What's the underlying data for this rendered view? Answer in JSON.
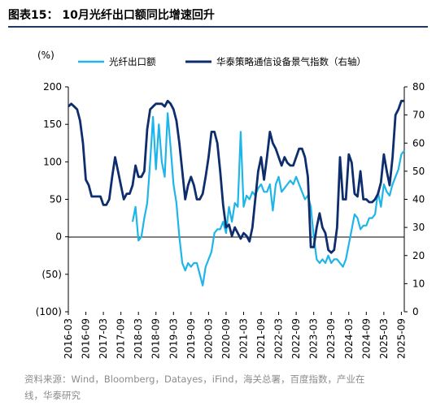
{
  "header": {
    "title": "图表15：  10月光纤出口额同比增速回升"
  },
  "footer": {
    "source_line1": "资料来源：Wind，Bloomberg，Datayes，iFind，海关总署，百度指数，产业在",
    "source_line2": "线，华泰研究"
  },
  "chart_data": {
    "type": "line",
    "title": "10月光纤出口额同比增速回升",
    "left_axis": {
      "label": "(%)",
      "ylim": [
        -100,
        200
      ],
      "ticks": [
        200,
        150,
        100,
        50,
        0,
        -50,
        -100
      ],
      "tick_labels": [
        "200",
        "150",
        "100",
        "50",
        "0",
        "(50)",
        "(100)"
      ]
    },
    "right_axis": {
      "label": "",
      "ylim": [
        0,
        80
      ],
      "ticks": [
        80,
        70,
        60,
        50,
        40,
        30,
        20,
        10,
        0
      ],
      "tick_labels": [
        "80",
        "70",
        "60",
        "50",
        "40",
        "30",
        "20",
        "10",
        "0"
      ]
    },
    "x_axis": {
      "start": "2016-03",
      "end": "2025-10",
      "tick_labels": [
        "2016-03",
        "2016-09",
        "2017-03",
        "2017-09",
        "2018-03",
        "2018-09",
        "2019-03",
        "2019-09",
        "2020-03",
        "2020-09",
        "2021-03",
        "2021-09",
        "2022-03",
        "2022-09",
        "2023-03",
        "2023-09",
        "2024-03",
        "2024-09",
        "2025-03",
        "2025-09"
      ]
    },
    "legend_position": "top",
    "series": [
      {
        "name": "光纤出口额",
        "axis": "left",
        "color": "#1fb5e8",
        "points": [
          [
            "2018-01",
            20
          ],
          [
            "2018-02",
            40
          ],
          [
            "2018-03",
            -5
          ],
          [
            "2018-04",
            0
          ],
          [
            "2018-05",
            25
          ],
          [
            "2018-06",
            45
          ],
          [
            "2018-07",
            100
          ],
          [
            "2018-08",
            160
          ],
          [
            "2018-09",
            90
          ],
          [
            "2018-10",
            150
          ],
          [
            "2018-11",
            100
          ],
          [
            "2018-12",
            80
          ],
          [
            "2019-01",
            165
          ],
          [
            "2019-02",
            120
          ],
          [
            "2019-03",
            70
          ],
          [
            "2019-04",
            45
          ],
          [
            "2019-05",
            0
          ],
          [
            "2019-06",
            -35
          ],
          [
            "2019-07",
            -45
          ],
          [
            "2019-08",
            -35
          ],
          [
            "2019-09",
            -40
          ],
          [
            "2019-10",
            -35
          ],
          [
            "2019-11",
            -35
          ],
          [
            "2019-12",
            -50
          ],
          [
            "2020-01",
            -65
          ],
          [
            "2020-02",
            -40
          ],
          [
            "2020-03",
            -30
          ],
          [
            "2020-04",
            -20
          ],
          [
            "2020-05",
            5
          ],
          [
            "2020-06",
            10
          ],
          [
            "2020-07",
            10
          ],
          [
            "2020-08",
            20
          ],
          [
            "2020-09",
            5
          ],
          [
            "2020-10",
            40
          ],
          [
            "2020-11",
            20
          ],
          [
            "2020-12",
            45
          ],
          [
            "2021-01",
            40
          ],
          [
            "2021-02",
            140
          ],
          [
            "2021-03",
            40
          ],
          [
            "2021-04",
            55
          ],
          [
            "2021-05",
            50
          ],
          [
            "2021-06",
            60
          ],
          [
            "2021-07",
            55
          ],
          [
            "2021-08",
            65
          ],
          [
            "2021-09",
            70
          ],
          [
            "2021-10",
            60
          ],
          [
            "2021-11",
            60
          ],
          [
            "2021-12",
            70
          ],
          [
            "2022-01",
            35
          ],
          [
            "2022-02",
            70
          ],
          [
            "2022-03",
            80
          ],
          [
            "2022-04",
            60
          ],
          [
            "2022-05",
            65
          ],
          [
            "2022-06",
            70
          ],
          [
            "2022-07",
            75
          ],
          [
            "2022-08",
            70
          ],
          [
            "2022-09",
            80
          ],
          [
            "2022-10",
            70
          ],
          [
            "2022-11",
            60
          ],
          [
            "2022-12",
            50
          ],
          [
            "2023-01",
            55
          ],
          [
            "2023-02",
            40
          ],
          [
            "2023-03",
            0
          ],
          [
            "2023-04",
            -30
          ],
          [
            "2023-05",
            -35
          ],
          [
            "2023-06",
            -30
          ],
          [
            "2023-07",
            -35
          ],
          [
            "2023-08",
            -25
          ],
          [
            "2023-09",
            -35
          ],
          [
            "2023-10",
            -30
          ],
          [
            "2023-11",
            -30
          ],
          [
            "2023-12",
            -35
          ],
          [
            "2024-01",
            -40
          ],
          [
            "2024-02",
            -30
          ],
          [
            "2024-03",
            -10
          ],
          [
            "2024-04",
            10
          ],
          [
            "2024-05",
            30
          ],
          [
            "2024-06",
            25
          ],
          [
            "2024-07",
            10
          ],
          [
            "2024-08",
            15
          ],
          [
            "2024-09",
            15
          ],
          [
            "2024-10",
            25
          ],
          [
            "2024-11",
            25
          ],
          [
            "2024-12",
            30
          ],
          [
            "2025-01",
            60
          ],
          [
            "2025-02",
            40
          ],
          [
            "2025-03",
            70
          ],
          [
            "2025-04",
            60
          ],
          [
            "2025-05",
            55
          ],
          [
            "2025-06",
            70
          ],
          [
            "2025-07",
            80
          ],
          [
            "2025-08",
            90
          ],
          [
            "2025-09",
            110
          ],
          [
            "2025-10",
            115
          ]
        ]
      },
      {
        "name": "华泰策略通信设备景气指数（右轴）",
        "axis": "right",
        "color": "#0d2d6c",
        "points": [
          [
            "2016-03",
            73
          ],
          [
            "2016-04",
            74
          ],
          [
            "2016-05",
            73
          ],
          [
            "2016-06",
            72
          ],
          [
            "2016-07",
            68
          ],
          [
            "2016-08",
            60
          ],
          [
            "2016-09",
            47
          ],
          [
            "2016-10",
            45
          ],
          [
            "2016-11",
            41
          ],
          [
            "2016-12",
            41
          ],
          [
            "2017-01",
            41
          ],
          [
            "2017-02",
            41
          ],
          [
            "2017-03",
            38
          ],
          [
            "2017-04",
            38
          ],
          [
            "2017-05",
            40
          ],
          [
            "2017-06",
            48
          ],
          [
            "2017-07",
            55
          ],
          [
            "2017-08",
            50
          ],
          [
            "2017-09",
            45
          ],
          [
            "2017-10",
            40
          ],
          [
            "2017-11",
            42
          ],
          [
            "2017-12",
            42
          ],
          [
            "2018-01",
            45
          ],
          [
            "2018-02",
            52
          ],
          [
            "2018-03",
            48
          ],
          [
            "2018-04",
            48
          ],
          [
            "2018-05",
            50
          ],
          [
            "2018-06",
            65
          ],
          [
            "2018-07",
            72
          ],
          [
            "2018-08",
            73
          ],
          [
            "2018-09",
            74
          ],
          [
            "2018-10",
            74
          ],
          [
            "2018-11",
            74
          ],
          [
            "2018-12",
            73
          ],
          [
            "2019-01",
            75
          ],
          [
            "2019-02",
            74
          ],
          [
            "2019-03",
            72
          ],
          [
            "2019-04",
            68
          ],
          [
            "2019-05",
            60
          ],
          [
            "2019-06",
            50
          ],
          [
            "2019-07",
            40
          ],
          [
            "2019-08",
            45
          ],
          [
            "2019-09",
            48
          ],
          [
            "2019-10",
            45
          ],
          [
            "2019-11",
            40
          ],
          [
            "2019-12",
            40
          ],
          [
            "2020-01",
            42
          ],
          [
            "2020-02",
            48
          ],
          [
            "2020-03",
            55
          ],
          [
            "2020-04",
            64
          ],
          [
            "2020-05",
            64
          ],
          [
            "2020-06",
            60
          ],
          [
            "2020-07",
            50
          ],
          [
            "2020-08",
            38
          ],
          [
            "2020-09",
            30
          ],
          [
            "2020-10",
            31
          ],
          [
            "2020-11",
            27
          ],
          [
            "2020-12",
            30
          ],
          [
            "2021-01",
            28
          ],
          [
            "2021-02",
            26
          ],
          [
            "2021-03",
            28
          ],
          [
            "2021-04",
            27
          ],
          [
            "2021-05",
            25
          ],
          [
            "2021-06",
            30
          ],
          [
            "2021-07",
            40
          ],
          [
            "2021-08",
            50
          ],
          [
            "2021-09",
            55
          ],
          [
            "2021-10",
            47
          ],
          [
            "2021-11",
            55
          ],
          [
            "2021-12",
            64
          ],
          [
            "2022-01",
            60
          ],
          [
            "2022-02",
            58
          ],
          [
            "2022-03",
            55
          ],
          [
            "2022-04",
            52
          ],
          [
            "2022-05",
            55
          ],
          [
            "2022-06",
            53
          ],
          [
            "2022-07",
            52
          ],
          [
            "2022-08",
            52
          ],
          [
            "2022-09",
            55
          ],
          [
            "2022-10",
            58
          ],
          [
            "2022-11",
            58
          ],
          [
            "2022-12",
            55
          ],
          [
            "2023-01",
            48
          ],
          [
            "2023-02",
            23
          ],
          [
            "2023-03",
            23
          ],
          [
            "2023-04",
            30
          ],
          [
            "2023-05",
            35
          ],
          [
            "2023-06",
            30
          ],
          [
            "2023-07",
            28
          ],
          [
            "2023-08",
            22
          ],
          [
            "2023-09",
            21
          ],
          [
            "2023-10",
            22
          ],
          [
            "2023-11",
            30
          ],
          [
            "2023-12",
            55
          ],
          [
            "2024-01",
            40
          ],
          [
            "2024-02",
            40
          ],
          [
            "2024-03",
            56
          ],
          [
            "2024-04",
            53
          ],
          [
            "2024-05",
            42
          ],
          [
            "2024-06",
            41
          ],
          [
            "2024-07",
            50
          ],
          [
            "2024-08",
            40
          ],
          [
            "2024-09",
            40
          ],
          [
            "2024-10",
            39
          ],
          [
            "2024-11",
            39
          ],
          [
            "2024-12",
            40
          ],
          [
            "2025-01",
            42
          ],
          [
            "2025-02",
            46
          ],
          [
            "2025-03",
            56
          ],
          [
            "2025-04",
            50
          ],
          [
            "2025-05",
            45
          ],
          [
            "2025-06",
            55
          ],
          [
            "2025-07",
            70
          ],
          [
            "2025-08",
            72
          ],
          [
            "2025-09",
            75
          ],
          [
            "2025-10",
            75
          ]
        ]
      }
    ]
  }
}
